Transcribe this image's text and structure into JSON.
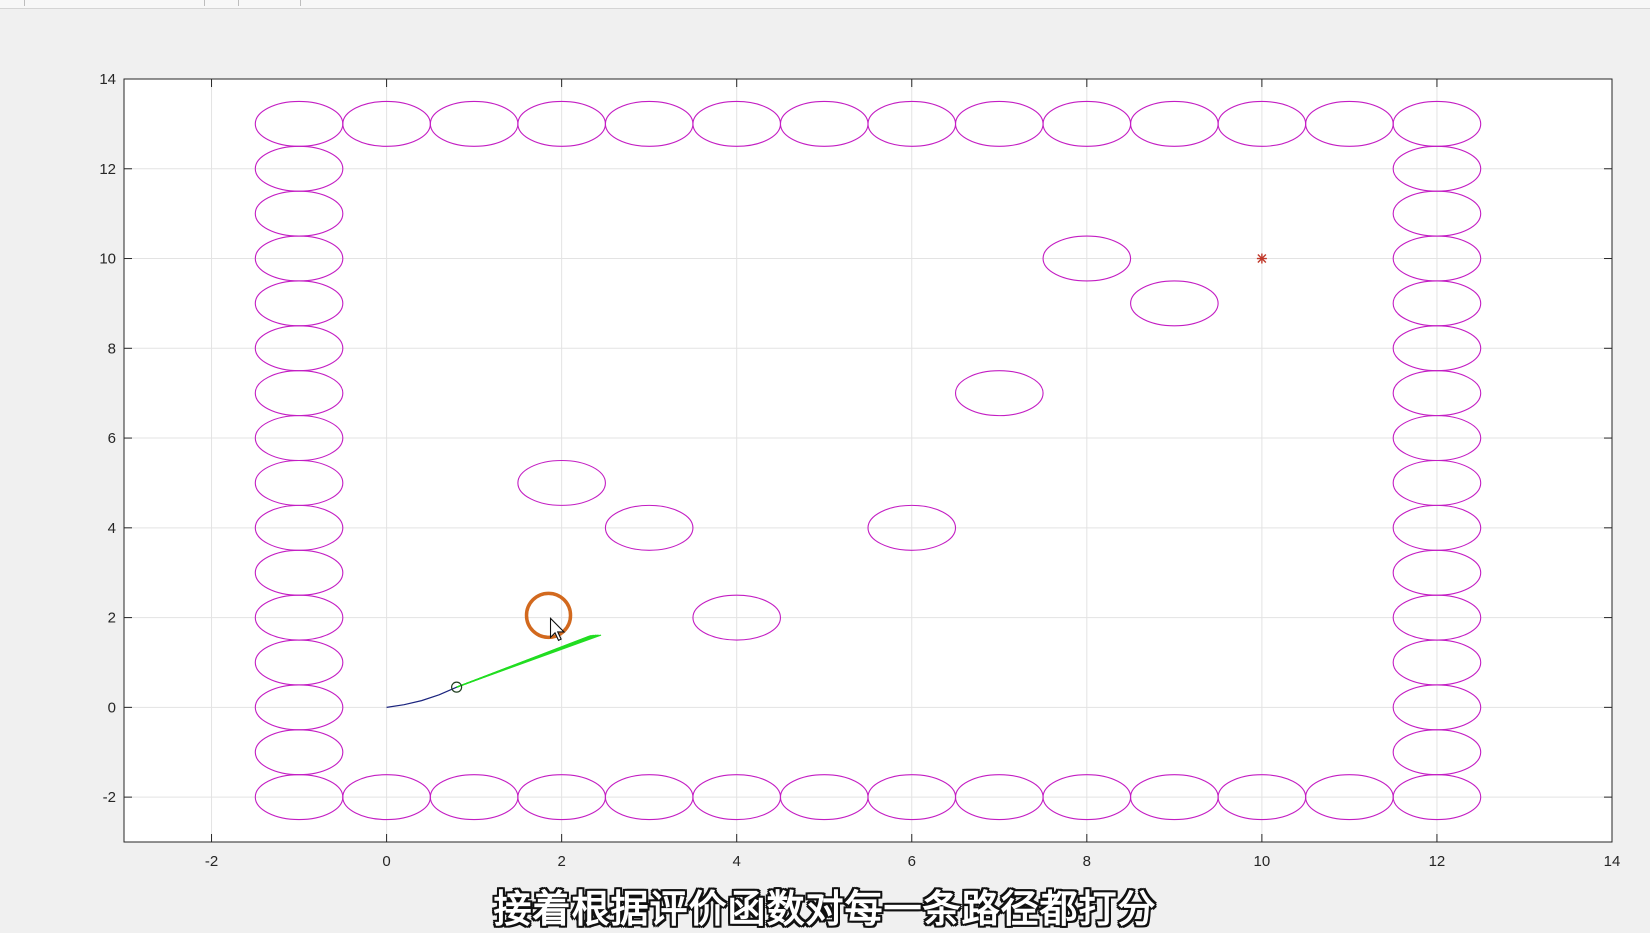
{
  "chart_data": {
    "type": "scatter",
    "title": "",
    "xlabel": "",
    "ylabel": "",
    "xlim": [
      -3,
      14
    ],
    "ylim": [
      -3,
      14
    ],
    "xticks": [
      -2,
      0,
      2,
      4,
      6,
      8,
      10,
      12,
      14
    ],
    "yticks": [
      -2,
      0,
      2,
      4,
      6,
      8,
      10,
      12,
      14
    ],
    "xtick_labels": [
      "-2",
      "0",
      "2",
      "4",
      "6",
      "8",
      "10",
      "12",
      "14"
    ],
    "ytick_labels": [
      "-2",
      "0",
      "2",
      "4",
      "6",
      "8",
      "10",
      "12",
      "14"
    ],
    "grid": true,
    "obstacle_radius": 0.5,
    "obstacles": [
      [
        -1,
        -2
      ],
      [
        0,
        -2
      ],
      [
        1,
        -2
      ],
      [
        2,
        -2
      ],
      [
        3,
        -2
      ],
      [
        4,
        -2
      ],
      [
        5,
        -2
      ],
      [
        6,
        -2
      ],
      [
        7,
        -2
      ],
      [
        8,
        -2
      ],
      [
        9,
        -2
      ],
      [
        10,
        -2
      ],
      [
        11,
        -2
      ],
      [
        12,
        -2
      ],
      [
        -1,
        13
      ],
      [
        0,
        13
      ],
      [
        1,
        13
      ],
      [
        2,
        13
      ],
      [
        3,
        13
      ],
      [
        4,
        13
      ],
      [
        5,
        13
      ],
      [
        6,
        13
      ],
      [
        7,
        13
      ],
      [
        8,
        13
      ],
      [
        9,
        13
      ],
      [
        10,
        13
      ],
      [
        11,
        13
      ],
      [
        12,
        13
      ],
      [
        -1,
        -1
      ],
      [
        -1,
        0
      ],
      [
        -1,
        1
      ],
      [
        -1,
        2
      ],
      [
        -1,
        3
      ],
      [
        -1,
        4
      ],
      [
        -1,
        5
      ],
      [
        -1,
        6
      ],
      [
        -1,
        7
      ],
      [
        -1,
        8
      ],
      [
        -1,
        9
      ],
      [
        -1,
        10
      ],
      [
        -1,
        11
      ],
      [
        -1,
        12
      ],
      [
        12,
        -1
      ],
      [
        12,
        0
      ],
      [
        12,
        1
      ],
      [
        12,
        2
      ],
      [
        12,
        3
      ],
      [
        12,
        4
      ],
      [
        12,
        5
      ],
      [
        12,
        6
      ],
      [
        12,
        7
      ],
      [
        12,
        8
      ],
      [
        12,
        9
      ],
      [
        12,
        10
      ],
      [
        12,
        11
      ],
      [
        12,
        12
      ],
      [
        2,
        5
      ],
      [
        3,
        4
      ],
      [
        4,
        2
      ],
      [
        6,
        4
      ],
      [
        7,
        7
      ],
      [
        8,
        10
      ],
      [
        9,
        9
      ]
    ],
    "goal": [
      10,
      10
    ],
    "robot_position": [
      0.8,
      0.45
    ],
    "trajectory": {
      "x": [
        0,
        0.2,
        0.4,
        0.6,
        0.8
      ],
      "y": [
        0,
        0.06,
        0.15,
        0.28,
        0.45
      ]
    },
    "candidate_paths": {
      "origin": [
        0.8,
        0.45
      ],
      "ends_x": [
        2.2,
        2.45
      ],
      "ends_y": [
        1.4,
        1.7
      ],
      "count": 14
    },
    "colors": {
      "obstacle": "#c31dc3",
      "goal": "#c0392b",
      "trajectory": "#1a237e",
      "candidates": "#22dd22",
      "robot": "#1f3f1f",
      "highlight": "#d2691e",
      "grid": "#e3e3e3",
      "axes": "#262626"
    }
  },
  "highlight": {
    "center": [
      1.85,
      2.05
    ],
    "type": "cursor-ring"
  },
  "subtitle_text": "接着根据评价函数对每一条路径都打分"
}
